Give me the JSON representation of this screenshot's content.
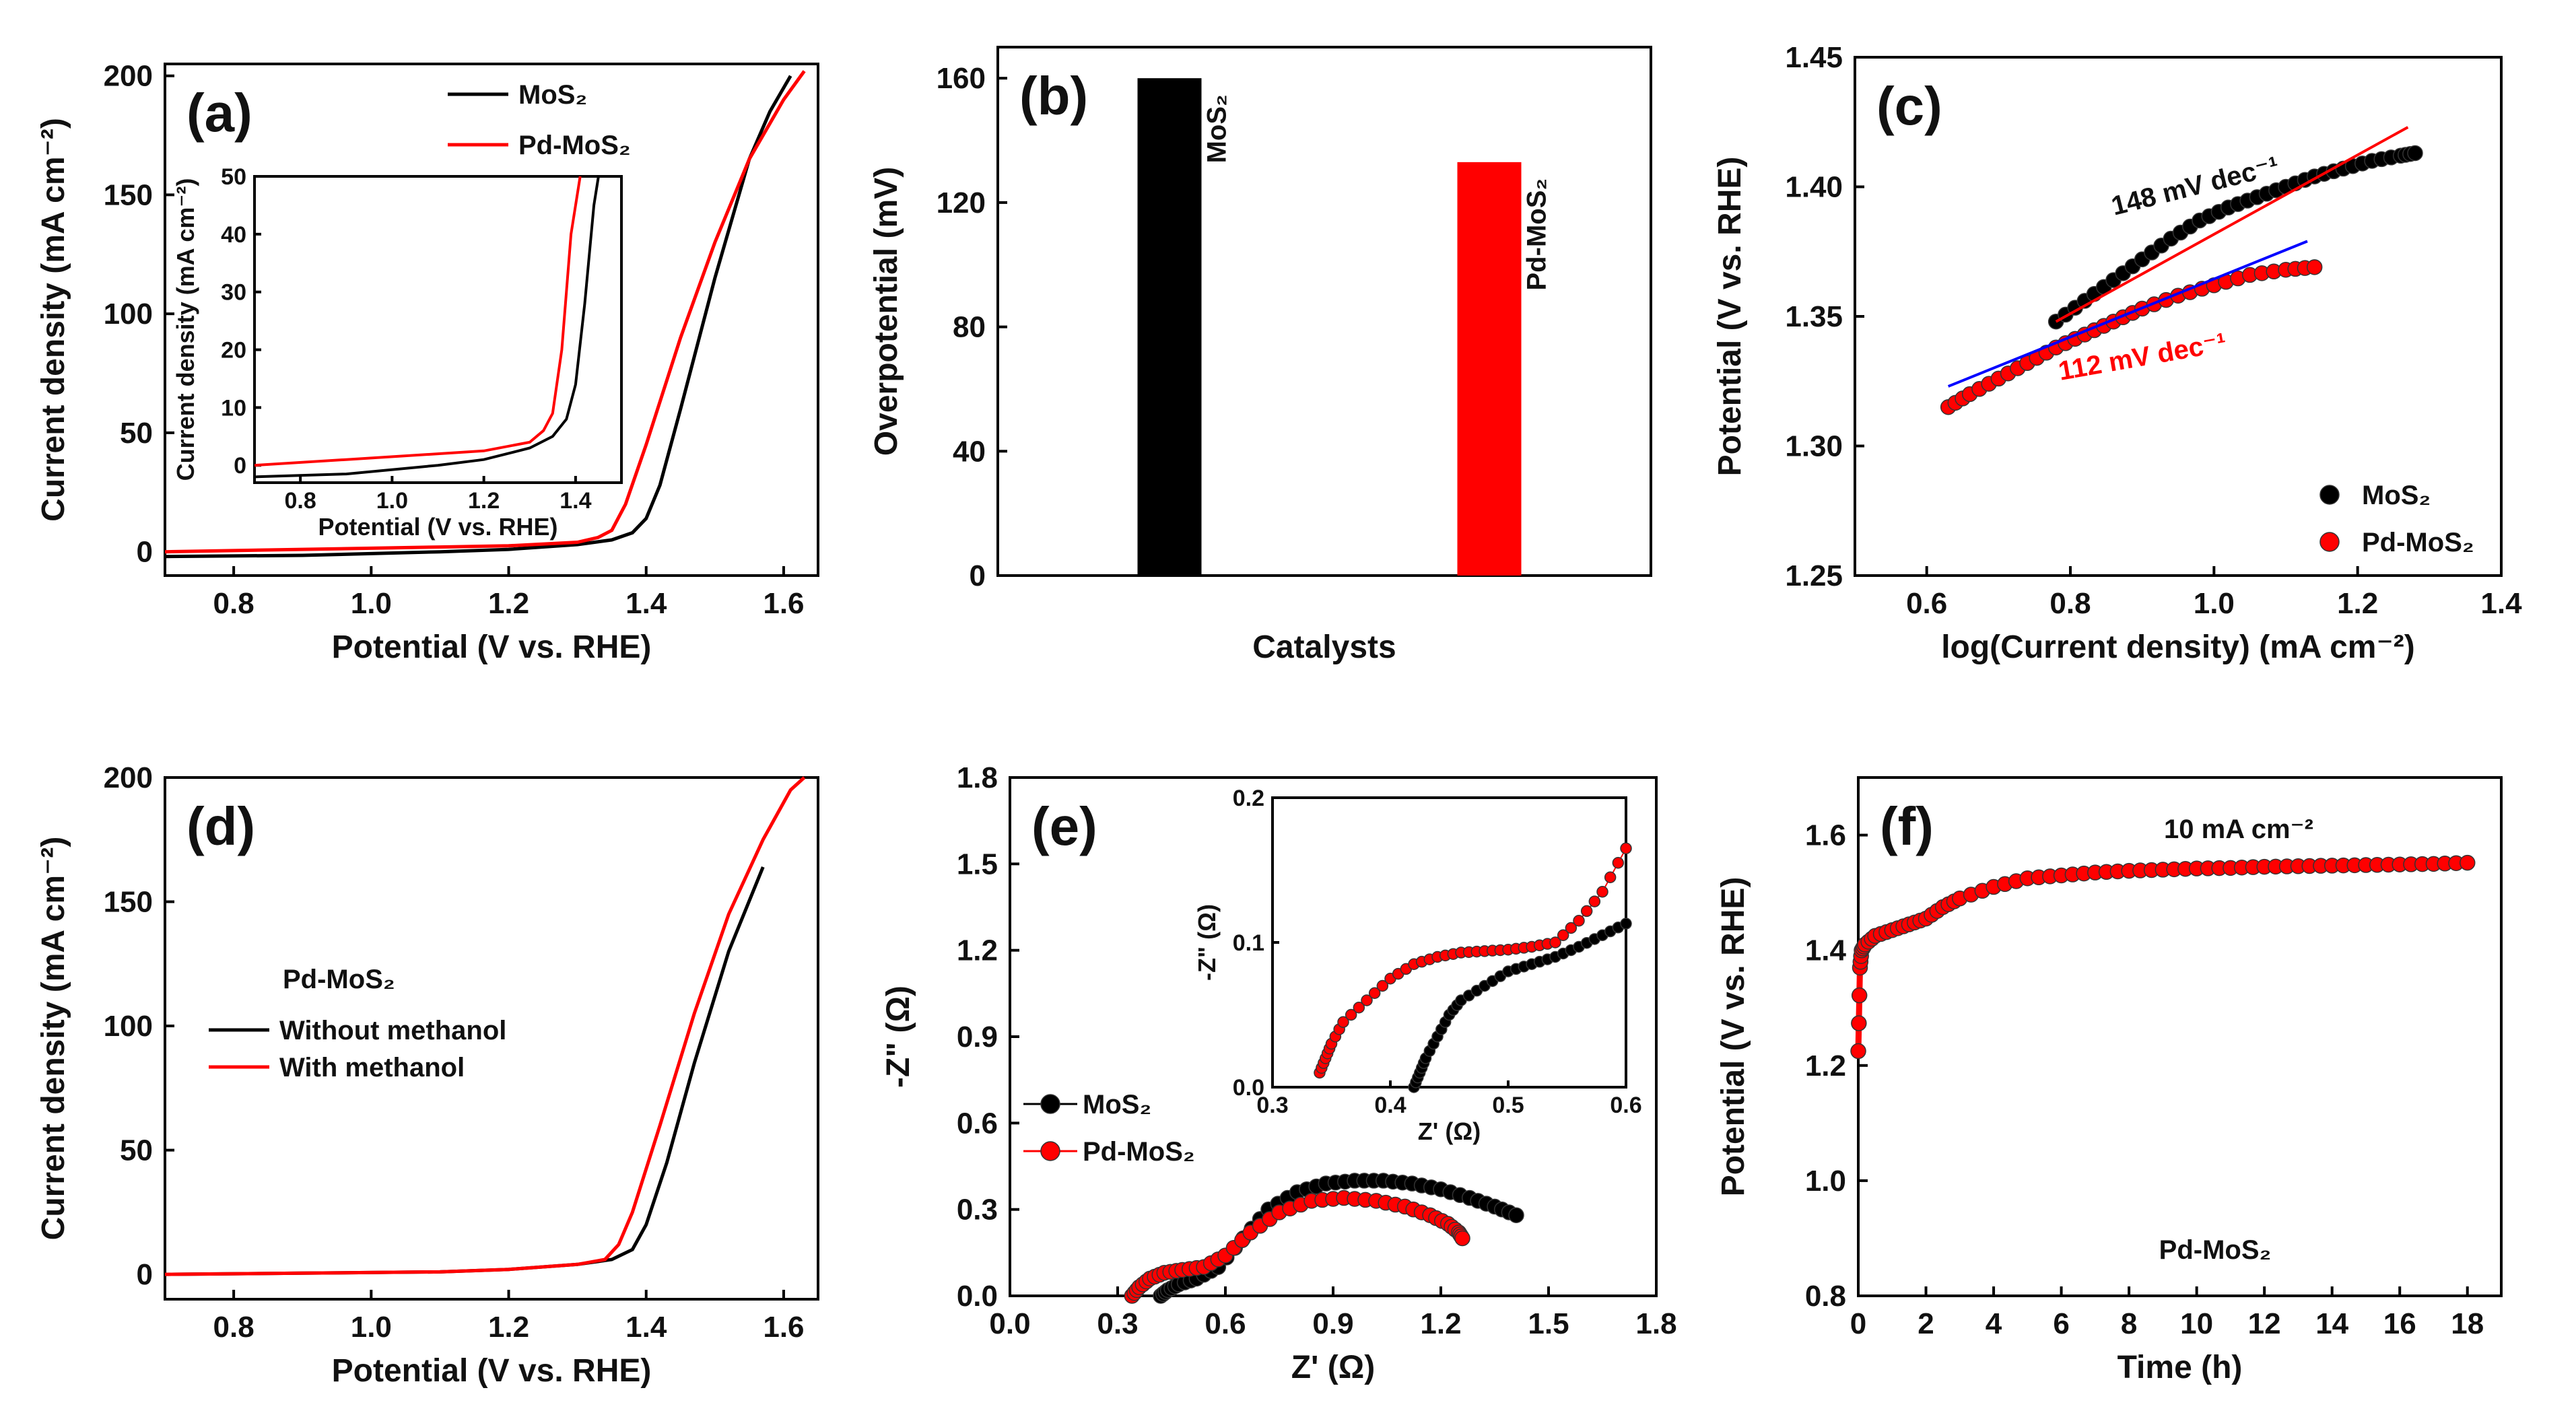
{
  "chart_data": [
    {
      "id": "a",
      "type": "line",
      "panel_label": "(a)",
      "xlabel": "Potential (V vs. RHE)",
      "ylabel": "Current density (mA cm⁻²)",
      "xlim": [
        0.7,
        1.65
      ],
      "ylim": [
        -10,
        205
      ],
      "xticks": [
        "0.8",
        "1.0",
        "1.2",
        "1.4",
        "1.6"
      ],
      "yticks": [
        "0",
        "50",
        "100",
        "150",
        "200"
      ],
      "legend_position": "top-right",
      "series": [
        {
          "name": "MoS₂",
          "color": "#000000",
          "x": [
            0.7,
            0.9,
            1.1,
            1.2,
            1.3,
            1.35,
            1.38,
            1.4,
            1.42,
            1.45,
            1.5,
            1.55,
            1.58,
            1.61
          ],
          "y": [
            -2,
            -1.5,
            0,
            1,
            3,
            5,
            8,
            14,
            28,
            60,
            115,
            165,
            185,
            200
          ]
        },
        {
          "name": "Pd-MoS₂",
          "color": "#ff0000",
          "x": [
            0.7,
            0.9,
            1.1,
            1.2,
            1.3,
            1.33,
            1.35,
            1.37,
            1.4,
            1.45,
            1.5,
            1.55,
            1.6,
            1.63
          ],
          "y": [
            0,
            1,
            2,
            2.5,
            4,
            6,
            9,
            20,
            45,
            90,
            130,
            165,
            190,
            202
          ]
        }
      ],
      "inset": {
        "xlabel": "Potential (V vs. RHE)",
        "ylabel": "Current density (mA cm⁻²)",
        "xlim": [
          0.7,
          1.5
        ],
        "ylim": [
          -3,
          50
        ],
        "xticks": [
          "0.8",
          "1.0",
          "1.2",
          "1.4"
        ],
        "yticks": [
          "0",
          "10",
          "20",
          "30",
          "40",
          "50"
        ],
        "series": [
          {
            "name": "MoS₂",
            "color": "#000000",
            "x": [
              0.7,
              0.9,
              1.1,
              1.2,
              1.3,
              1.35,
              1.38,
              1.4,
              1.42,
              1.44,
              1.45
            ],
            "y": [
              -2,
              -1.5,
              0,
              1,
              3,
              5,
              8,
              14,
              28,
              45,
              50
            ]
          },
          {
            "name": "Pd-MoS₂",
            "color": "#ff0000",
            "x": [
              0.7,
              0.9,
              1.1,
              1.2,
              1.3,
              1.33,
              1.35,
              1.37,
              1.39,
              1.41
            ],
            "y": [
              0,
              1,
              2,
              2.5,
              4,
              6,
              9,
              20,
              40,
              50
            ]
          }
        ]
      }
    },
    {
      "id": "b",
      "type": "bar",
      "panel_label": "(b)",
      "xlabel": "Catalysts",
      "ylabel": "Overpotential (mV)",
      "ylim": [
        0,
        170
      ],
      "yticks": [
        "0",
        "40",
        "80",
        "120",
        "160"
      ],
      "categories": [
        "MoS₂",
        "Pd-MoS₂"
      ],
      "values": [
        160,
        133
      ],
      "colors": [
        "#000000",
        "#ff0000"
      ]
    },
    {
      "id": "c",
      "type": "scatter",
      "panel_label": "(c)",
      "xlabel": "log(Current density) (mA cm⁻²)",
      "ylabel": "Potential (V vs. RHE)",
      "xlim": [
        0.5,
        1.4
      ],
      "ylim": [
        1.25,
        1.45
      ],
      "xticks": [
        "0.6",
        "0.8",
        "1.0",
        "1.2",
        "1.4"
      ],
      "yticks": [
        "1.25",
        "1.30",
        "1.35",
        "1.40",
        "1.45"
      ],
      "legend_position": "bottom-right",
      "series": [
        {
          "name": "MoS₂",
          "color": "#000000",
          "x": [
            0.78,
            0.82,
            0.86,
            0.9,
            0.94,
            0.98,
            1.02,
            1.06,
            1.1,
            1.14,
            1.18,
            1.22,
            1.26,
            1.28
          ],
          "y": [
            1.348,
            1.356,
            1.364,
            1.372,
            1.38,
            1.387,
            1.392,
            1.396,
            1.4,
            1.404,
            1.407,
            1.41,
            1.412,
            1.413
          ]
        },
        {
          "name": "Pd-MoS₂",
          "color": "#ff0000",
          "x": [
            0.63,
            0.66,
            0.7,
            0.74,
            0.78,
            0.82,
            0.86,
            0.9,
            0.95,
            1.0,
            1.05,
            1.1,
            1.14
          ],
          "y": [
            1.315,
            1.32,
            1.326,
            1.332,
            1.338,
            1.343,
            1.348,
            1.353,
            1.358,
            1.362,
            1.366,
            1.368,
            1.369
          ]
        }
      ],
      "fits": [
        {
          "label": "148 mV dec⁻¹",
          "color": "#ff0000",
          "x": [
            0.78,
            1.27
          ],
          "y": [
            1.348,
            1.423
          ]
        },
        {
          "label": "112 mV dec⁻¹",
          "color": "#0000ff",
          "x": [
            0.63,
            1.13
          ],
          "y": [
            1.323,
            1.379
          ]
        }
      ],
      "annotations": [
        "148 mV dec⁻¹",
        "112 mV dec⁻¹"
      ]
    },
    {
      "id": "d",
      "type": "line",
      "panel_label": "(d)",
      "xlabel": "Potential (V vs. RHE)",
      "ylabel": "Current density (mA cm⁻²)",
      "xlim": [
        0.7,
        1.65
      ],
      "ylim": [
        -10,
        200
      ],
      "xticks": [
        "0.8",
        "1.0",
        "1.2",
        "1.4",
        "1.6"
      ],
      "yticks": [
        "0",
        "50",
        "100",
        "150",
        "200"
      ],
      "legend_title": "Pd-MoS₂",
      "series": [
        {
          "name": "Without methanol",
          "color": "#000000",
          "x": [
            0.7,
            0.9,
            1.1,
            1.2,
            1.3,
            1.35,
            1.38,
            1.4,
            1.43,
            1.47,
            1.52,
            1.57
          ],
          "y": [
            0,
            0.5,
            1,
            2,
            4,
            6,
            10,
            20,
            45,
            85,
            130,
            164
          ]
        },
        {
          "name": "With methanol",
          "color": "#ff0000",
          "x": [
            0.7,
            0.9,
            1.1,
            1.2,
            1.3,
            1.34,
            1.36,
            1.38,
            1.42,
            1.47,
            1.52,
            1.57,
            1.61,
            1.63
          ],
          "y": [
            0,
            0.5,
            1,
            2,
            4,
            6,
            12,
            25,
            60,
            105,
            145,
            175,
            195,
            200
          ]
        }
      ]
    },
    {
      "id": "e",
      "type": "scatter",
      "panel_label": "(e)",
      "xlabel": "Z' (Ω)",
      "ylabel": "-Z\" (Ω)",
      "xlim": [
        0.0,
        1.8
      ],
      "ylim": [
        0.0,
        1.8
      ],
      "xticks": [
        "0.0",
        "0.3",
        "0.6",
        "0.9",
        "1.2",
        "1.5",
        "1.8"
      ],
      "yticks": [
        "0.0",
        "0.3",
        "0.6",
        "0.9",
        "1.2",
        "1.5",
        "1.8"
      ],
      "legend_position": "left",
      "series": [
        {
          "name": "MoS₂",
          "color": "#000000",
          "x": [
            0.42,
            0.44,
            0.47,
            0.52,
            0.58,
            0.65,
            0.72,
            0.8,
            0.88,
            0.96,
            1.04,
            1.12,
            1.2,
            1.28,
            1.35,
            1.41
          ],
          "y": [
            0.0,
            0.02,
            0.04,
            0.06,
            0.1,
            0.2,
            0.3,
            0.36,
            0.39,
            0.4,
            0.4,
            0.39,
            0.37,
            0.34,
            0.31,
            0.28
          ]
        },
        {
          "name": "Pd-MoS₂",
          "color": "#ff0000",
          "x": [
            0.34,
            0.36,
            0.39,
            0.43,
            0.48,
            0.54,
            0.6,
            0.67,
            0.75,
            0.84,
            0.93,
            1.02,
            1.1,
            1.17,
            1.22,
            1.25,
            1.26
          ],
          "y": [
            0.0,
            0.03,
            0.06,
            0.08,
            0.09,
            0.1,
            0.14,
            0.22,
            0.29,
            0.33,
            0.34,
            0.33,
            0.31,
            0.28,
            0.25,
            0.22,
            0.2
          ]
        }
      ],
      "inset": {
        "xlabel": "Z' (Ω)",
        "ylabel": "-Z\" (Ω)",
        "xlim": [
          0.3,
          0.6
        ],
        "ylim": [
          0.0,
          0.2
        ],
        "xticks": [
          "0.3",
          "0.4",
          "0.5",
          "0.6"
        ],
        "yticks": [
          "0.0",
          "0.1",
          "0.2"
        ],
        "series": [
          {
            "name": "MoS₂",
            "color": "#000000",
            "x": [
              0.42,
              0.425,
              0.43,
              0.44,
              0.45,
              0.46,
              0.48,
              0.5,
              0.52,
              0.54,
              0.56,
              0.58,
              0.6
            ],
            "y": [
              0.0,
              0.01,
              0.02,
              0.035,
              0.05,
              0.06,
              0.07,
              0.08,
              0.085,
              0.09,
              0.097,
              0.105,
              0.113
            ]
          },
          {
            "name": "Pd-MoS₂",
            "color": "#ff0000",
            "x": [
              0.34,
              0.345,
              0.35,
              0.36,
              0.38,
              0.4,
              0.42,
              0.44,
              0.46,
              0.48,
              0.5,
              0.52,
              0.54,
              0.56,
              0.58,
              0.6
            ],
            "y": [
              0.01,
              0.02,
              0.03,
              0.045,
              0.06,
              0.075,
              0.085,
              0.09,
              0.093,
              0.094,
              0.095,
              0.097,
              0.1,
              0.115,
              0.135,
              0.165
            ]
          }
        ]
      }
    },
    {
      "id": "f",
      "type": "scatter",
      "panel_label": "(f)",
      "xlabel": "Time (h)",
      "ylabel": "Potential (V vs. RHE)",
      "xlim": [
        0,
        19
      ],
      "ylim": [
        0.8,
        1.7
      ],
      "xticks": [
        "0",
        "2",
        "4",
        "6",
        "8",
        "10",
        "12",
        "14",
        "16",
        "18"
      ],
      "yticks": [
        "0.8",
        "1.0",
        "1.2",
        "1.4",
        "1.6"
      ],
      "annotations": [
        "10 mA cm⁻²",
        "Pd-MoS₂"
      ],
      "series": [
        {
          "name": "Pd-MoS₂",
          "color": "#ff0000",
          "x": [
            0,
            0.05,
            0.1,
            0.2,
            0.5,
            1,
            1.5,
            2,
            2.5,
            3,
            4,
            5,
            6,
            7,
            8,
            9,
            10,
            11,
            12,
            13,
            14,
            15,
            16,
            17,
            18
          ],
          "y": [
            1.225,
            1.37,
            1.4,
            1.41,
            1.425,
            1.435,
            1.445,
            1.455,
            1.475,
            1.49,
            1.51,
            1.525,
            1.53,
            1.535,
            1.538,
            1.54,
            1.542,
            1.543,
            1.545,
            1.546,
            1.547,
            1.548,
            1.549,
            1.55,
            1.552
          ]
        }
      ]
    }
  ]
}
